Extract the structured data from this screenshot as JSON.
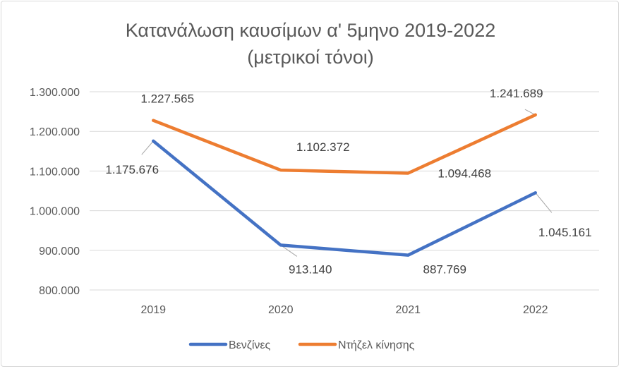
{
  "chart_data": {
    "type": "line",
    "title": "Κατανάλωση καυσίμων α' 5μηνο 2019-2022",
    "subtitle": "(μετρικοί τόνοι)",
    "xlabel": "",
    "ylabel": "",
    "categories": [
      "2019",
      "2020",
      "2021",
      "2022"
    ],
    "ylim": [
      800000,
      1300000
    ],
    "yticks": [
      800000,
      900000,
      1000000,
      1100000,
      1200000,
      1300000
    ],
    "ytick_labels": [
      "800.000",
      "900.000",
      "1.000.000",
      "1.100.000",
      "1.200.000",
      "1.300.000"
    ],
    "grid": true,
    "legend": "bottom",
    "series": [
      {
        "name": "Βενζίνες",
        "color": "#4472C4",
        "values": [
          1175676,
          913140,
          887769,
          1045161
        ],
        "labels": [
          "1.175.676",
          "913.140",
          "887.769",
          "1.045.161"
        ]
      },
      {
        "name": "Ντήζελ κίνησης",
        "color": "#ED7D31",
        "values": [
          1227565,
          1102372,
          1094468,
          1241689
        ],
        "labels": [
          "1.227.565",
          "1.102.372",
          "1.094.468",
          "1.241.689"
        ]
      }
    ]
  }
}
